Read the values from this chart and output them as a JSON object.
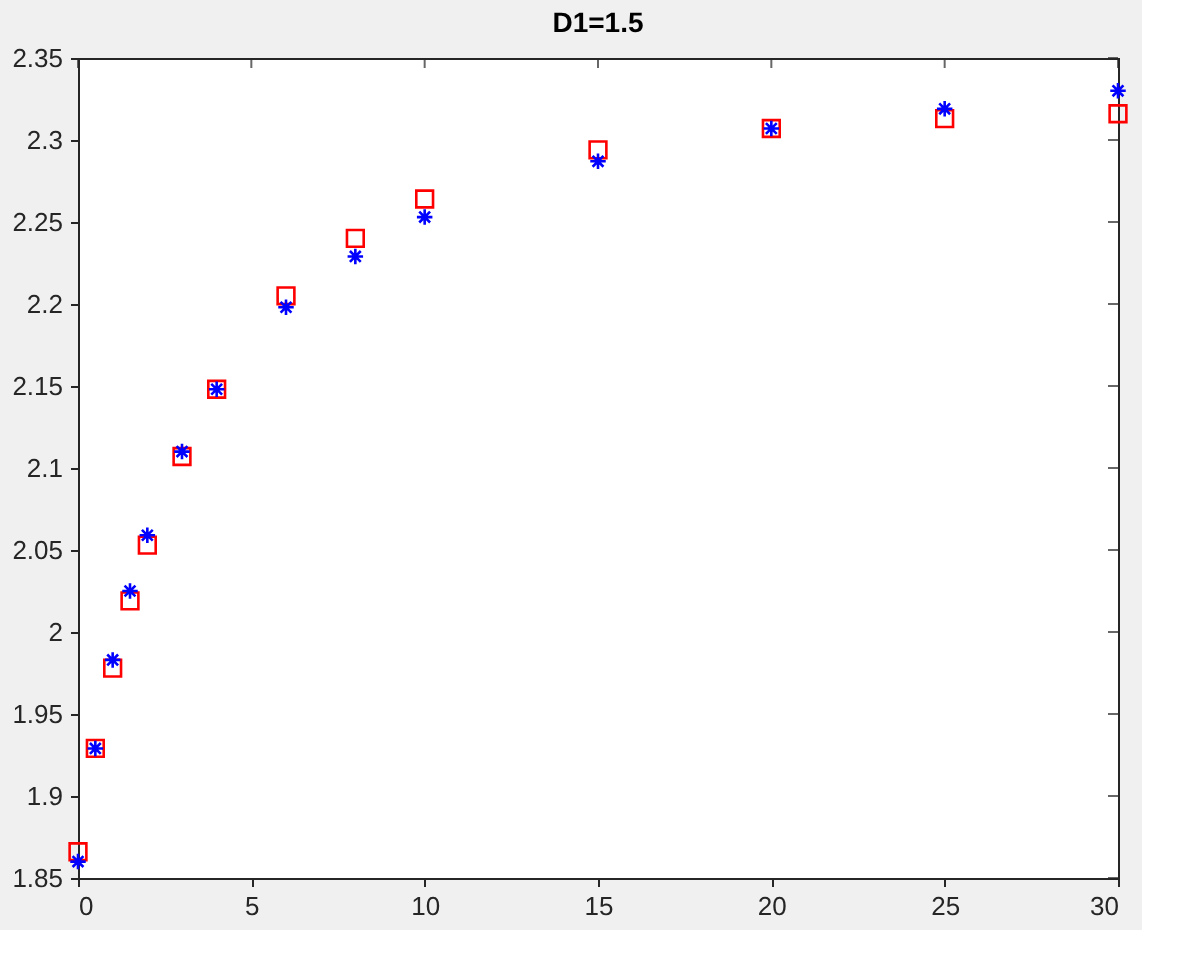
{
  "chart_data": {
    "type": "scatter",
    "title": "D1=1.5",
    "x": [
      0,
      0.5,
      1,
      1.5,
      2,
      3,
      4,
      6,
      8,
      10,
      15,
      20,
      25,
      30
    ],
    "series": [
      {
        "color": "#ff0000",
        "marker": "square",
        "values": [
          1.866,
          1.929,
          1.978,
          2.019,
          2.053,
          2.107,
          2.148,
          2.205,
          2.24,
          2.264,
          2.294,
          2.307,
          2.313,
          2.316
        ]
      },
      {
        "color": "#0000ff",
        "marker": "cross",
        "values": [
          1.86,
          1.929,
          1.983,
          2.025,
          2.059,
          2.11,
          2.148,
          2.198,
          2.229,
          2.253,
          2.287,
          2.307,
          2.319,
          2.33
        ]
      }
    ],
    "xlim": [
      0,
      30
    ],
    "xticks": [
      0,
      5,
      10,
      15,
      20,
      25,
      30
    ],
    "ylim": [
      1.85,
      2.35
    ],
    "yticks": [
      1.85,
      1.9,
      1.95,
      2,
      2.05,
      2.1,
      2.15,
      2.2,
      2.25,
      2.3,
      2.35
    ]
  }
}
